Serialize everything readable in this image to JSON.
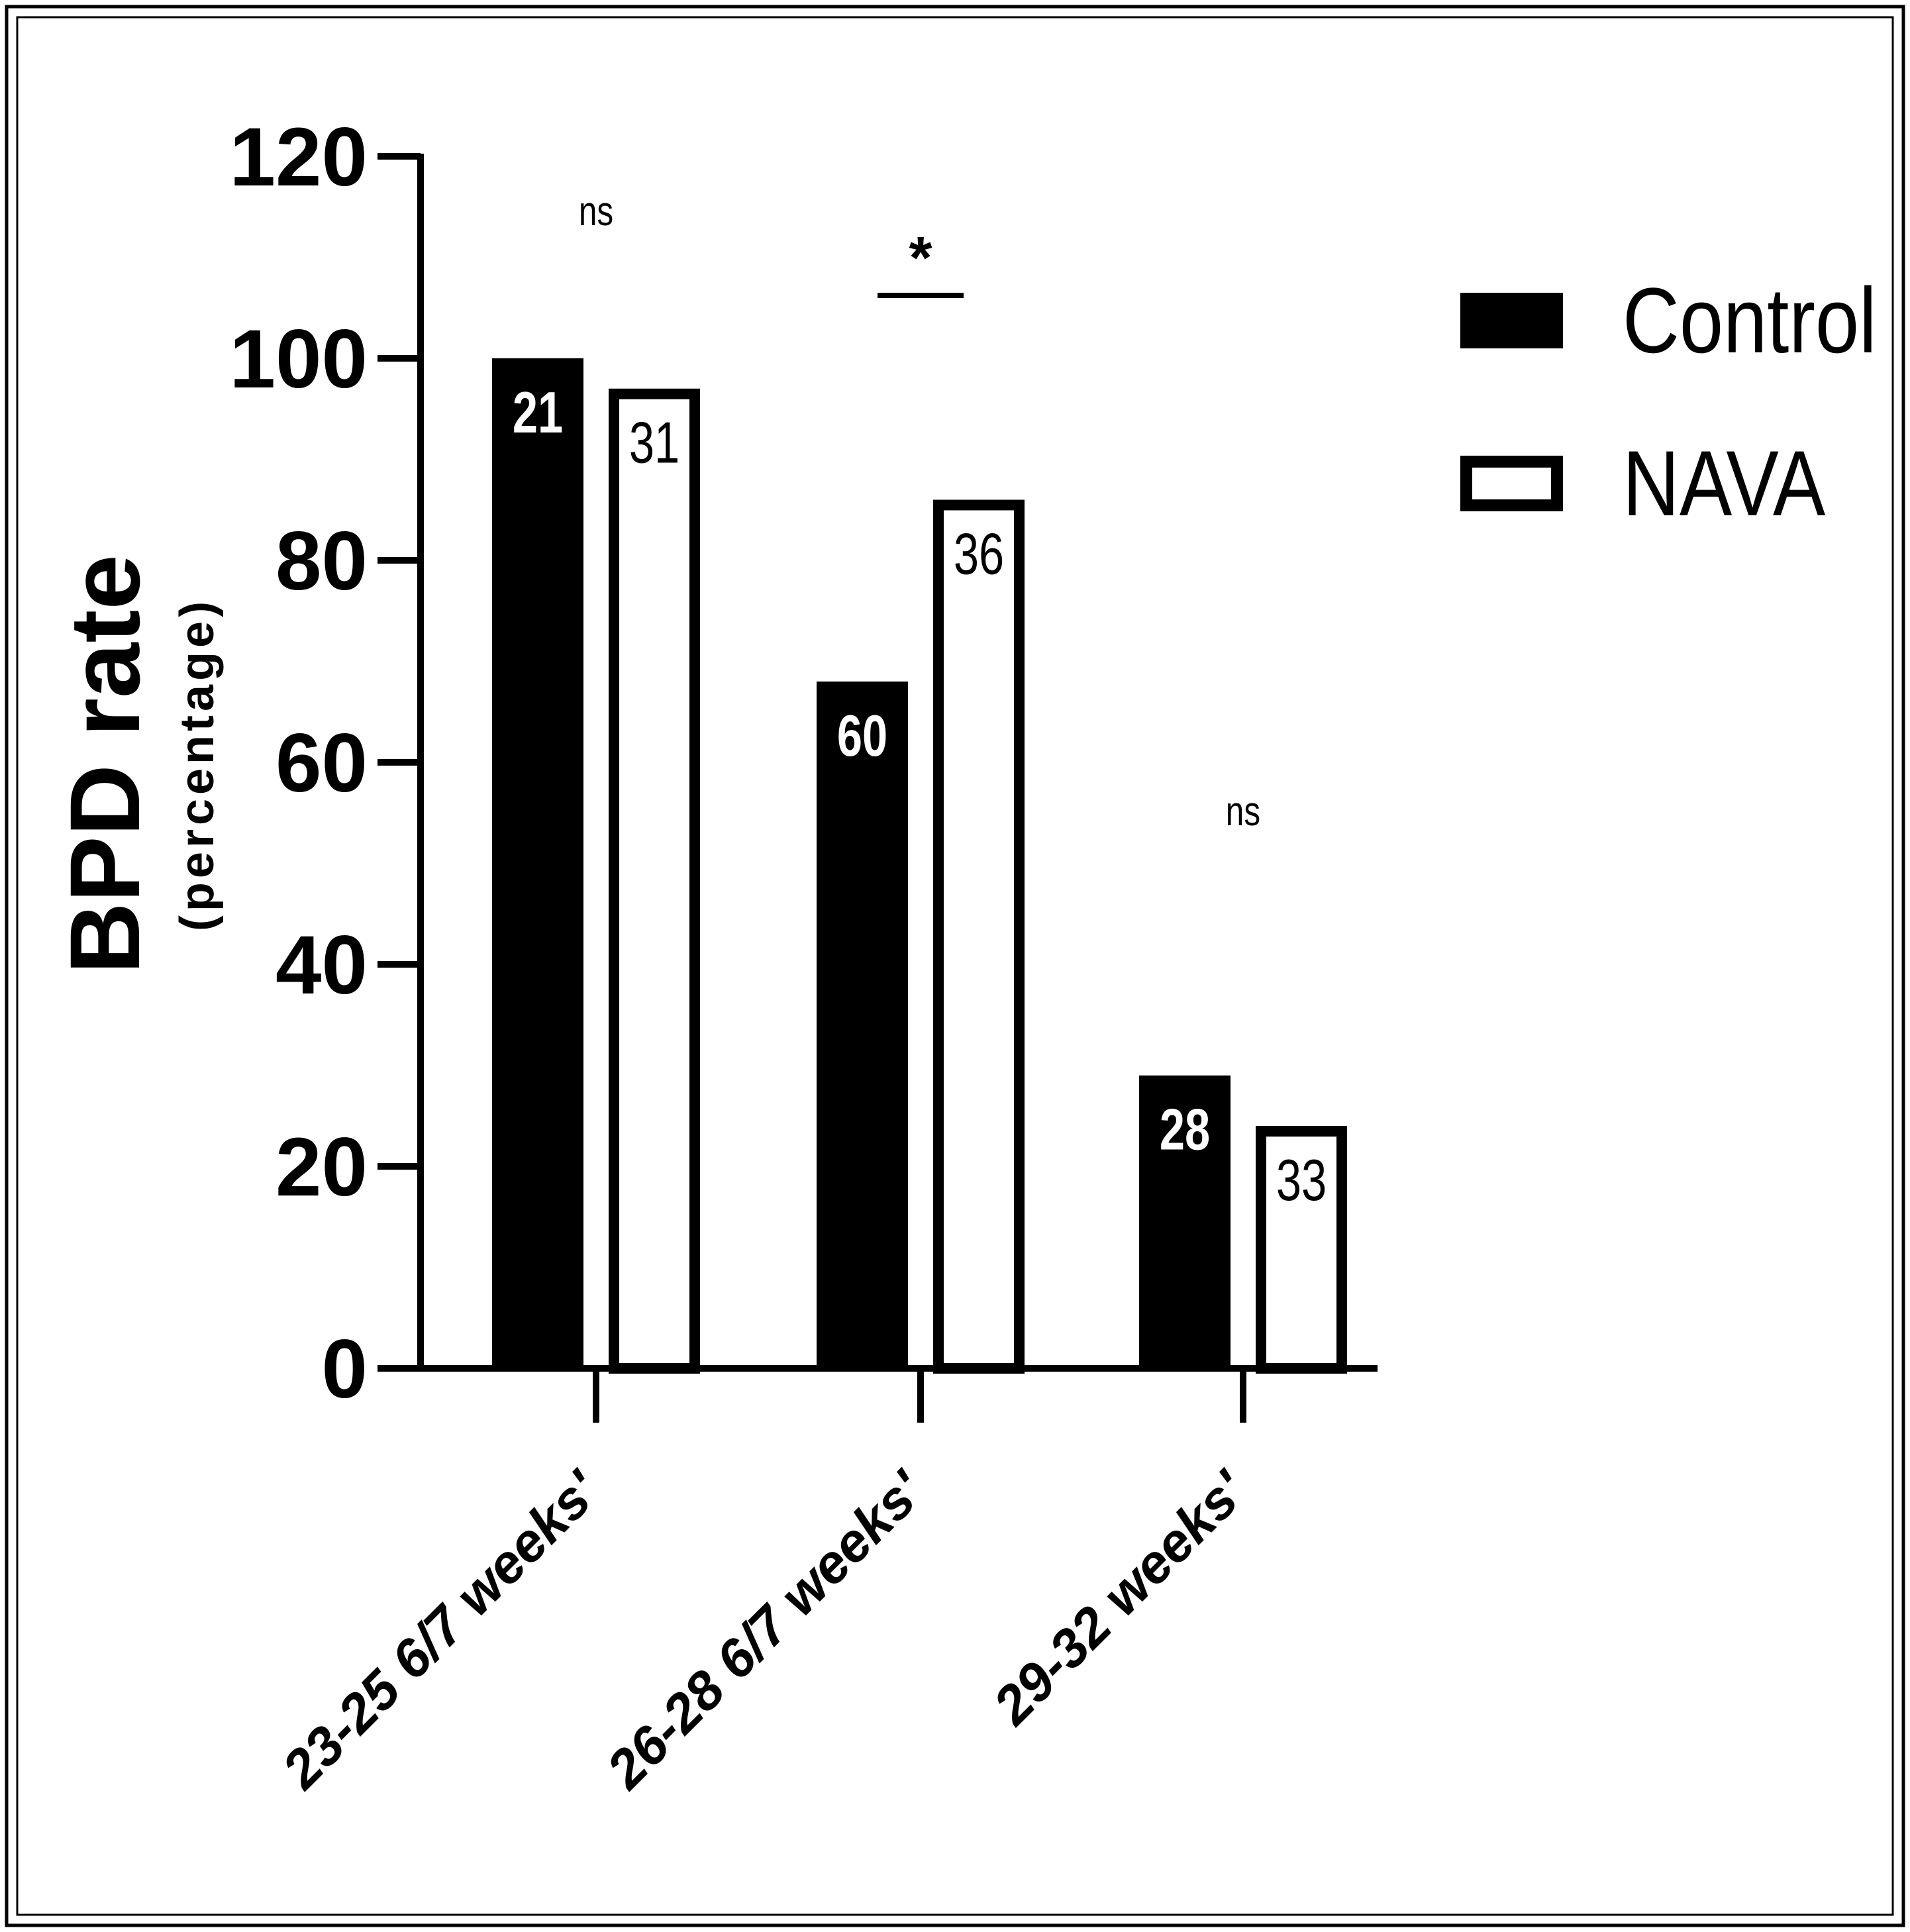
{
  "chart_data": {
    "type": "bar",
    "ylabel": "BPD rate",
    "ylabel_sub": "(percentage)",
    "ylim": [
      0,
      120
    ],
    "yticks": [
      "0",
      "20",
      "40",
      "60",
      "80",
      "100",
      "120"
    ],
    "categories": [
      "23-25 6/7 weeks'",
      "26-28 6/7 weeks'",
      "29-32 weeks'"
    ],
    "series": [
      {
        "name": "Control",
        "values": [
          100,
          68,
          29
        ],
        "bar_labels": [
          "21",
          "60",
          "28"
        ],
        "fill": "#000000"
      },
      {
        "name": "NAVA",
        "values": [
          97,
          86,
          24
        ],
        "bar_labels": [
          "31",
          "36",
          "33"
        ],
        "fill": "#ffffff"
      }
    ],
    "significance": [
      "ns",
      "*",
      "ns"
    ],
    "legend_position": "top-right",
    "grid": false,
    "colors": {
      "control": "#000000",
      "nava": "#ffffff",
      "outline": "#000000"
    }
  }
}
